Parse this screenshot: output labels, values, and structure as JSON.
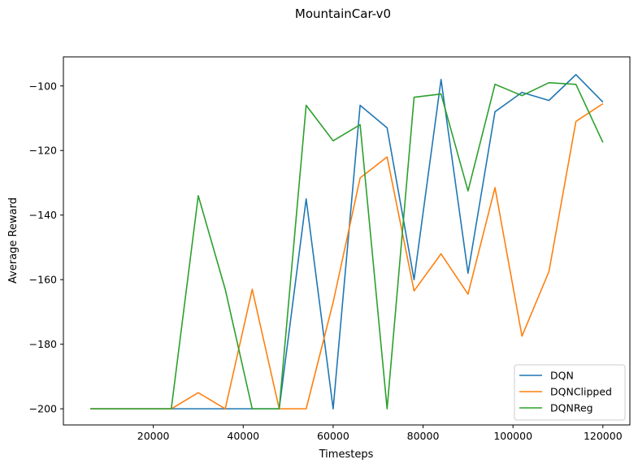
{
  "chart_data": {
    "type": "line",
    "title": "MountainCar-v0",
    "xlabel": "Timesteps",
    "ylabel": "Average Reward",
    "xlim": [
      0,
      126000
    ],
    "ylim": [
      -205,
      -91
    ],
    "xticks": [
      20000,
      40000,
      60000,
      80000,
      100000,
      120000
    ],
    "xtick_labels": [
      "20000",
      "40000",
      "60000",
      "80000",
      "100000",
      "120000"
    ],
    "yticks": [
      -200,
      -180,
      -160,
      -140,
      -120,
      -100
    ],
    "ytick_labels": [
      "−200",
      "−180",
      "−160",
      "−140",
      "−120",
      "−100"
    ],
    "grid": false,
    "legend_position": "lower-right",
    "x": [
      6000,
      12000,
      18000,
      24000,
      30000,
      36000,
      42000,
      48000,
      54000,
      60000,
      66000,
      72000,
      78000,
      84000,
      90000,
      96000,
      102000,
      108000,
      114000,
      120000
    ],
    "series": [
      {
        "name": "DQN",
        "color": "#1f77b4",
        "values": [
          -200,
          -200,
          -200,
          -200,
          -200,
          -200,
          -200,
          -200,
          -135,
          -200,
          -106,
          -113,
          -160,
          -98,
          -158,
          -108,
          -102,
          -104.5,
          -96.5,
          -105
        ]
      },
      {
        "name": "DQNClipped",
        "color": "#ff7f0e",
        "values": [
          -200,
          -200,
          -200,
          -200,
          -195,
          -200,
          -163,
          -200,
          -200,
          -167,
          -128.5,
          -122,
          -163.5,
          -152,
          -164.5,
          -131.5,
          -177.5,
          -157.5,
          -111,
          -105.5
        ]
      },
      {
        "name": "DQNReg",
        "color": "#2ca02c",
        "values": [
          -200,
          -200,
          -200,
          -200,
          -134,
          -163,
          -200,
          -200,
          -106,
          -117,
          -112,
          -200,
          -103.5,
          -102.5,
          -132.5,
          -99.5,
          -103,
          -99,
          -99.5,
          -117.5
        ]
      }
    ]
  }
}
